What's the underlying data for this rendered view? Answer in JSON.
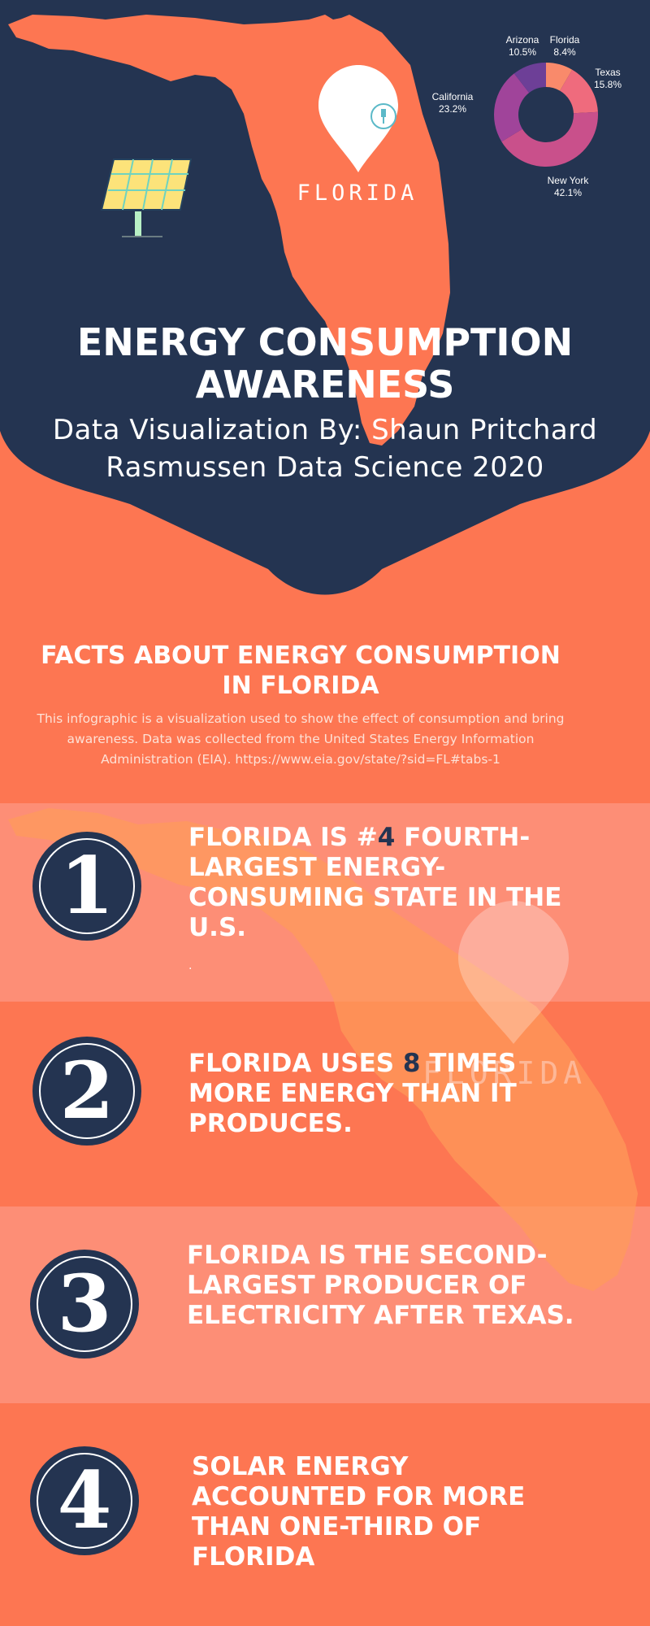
{
  "hero": {
    "map_label": "FLORIDA",
    "title_line1": "ENERGY CONSUMPTION",
    "title_line2": "AWARENESS",
    "subtitle_line1": "Data Visualization By: Shaun Pritchard",
    "subtitle_line2": "Rasmussen Data Science 2020"
  },
  "chart_data": {
    "type": "pie",
    "donut": true,
    "categories": [
      "Florida",
      "Texas",
      "New York",
      "California",
      "Arizona"
    ],
    "values": [
      8.4,
      15.8,
      42.1,
      23.2,
      10.5
    ],
    "value_labels": [
      "8.4%",
      "15.8%",
      "42.1%",
      "23.2%",
      "10.5%"
    ],
    "colors": [
      "#f98a6b",
      "#ef6b7d",
      "#c9508b",
      "#a0449a",
      "#6d3f97"
    ]
  },
  "facts_section": {
    "title_line1": "FACTS ABOUT ENERGY CONSUMPTION",
    "title_line2": "IN FLORIDA",
    "intro_line1": "This infographic is a visualization used to show the effect of consumption and bring",
    "intro_line2": "awareness. Data was collected from the United States Energy Information",
    "intro_line3": "Administration (EIA). https://www.eia.gov/state/?sid=FL#tabs-1",
    "watermark_label": "FLORIDA"
  },
  "facts": [
    {
      "number": "1",
      "lines": [
        "FLORIDA IS #4 FOURTH-",
        "LARGEST ENERGY-",
        "CONSUMING STATE IN THE",
        "U.S."
      ],
      "pre": "FLORIDA IS #",
      "highlight": "4",
      "post": " FOURTH-",
      "trailing": "."
    },
    {
      "number": "2",
      "lines": [
        "FLORIDA USES 8 TIMES",
        "MORE ENERGY THAN IT",
        "PRODUCES."
      ],
      "pre": "FLORIDA USES ",
      "highlight": "8",
      "post": " TIMES"
    },
    {
      "number": "3",
      "lines": [
        "FLORIDA IS THE SECOND-",
        "LARGEST PRODUCER OF",
        "ELECTRICITY AFTER TEXAS."
      ]
    },
    {
      "number": "4",
      "lines": [
        "SOLAR ENERGY",
        "ACCOUNTED FOR MORE",
        "THAN ONE-THIRD OF",
        "FLORIDA"
      ]
    }
  ],
  "colors": {
    "navy": "#243451",
    "coral": "#fd7652",
    "band_light": "#fd8e76",
    "map_orange": "#fd7652"
  },
  "icons": {
    "solar_panel": "solar-panel-icon",
    "map_pin": "map-pin-icon",
    "plug": "plug-icon"
  }
}
